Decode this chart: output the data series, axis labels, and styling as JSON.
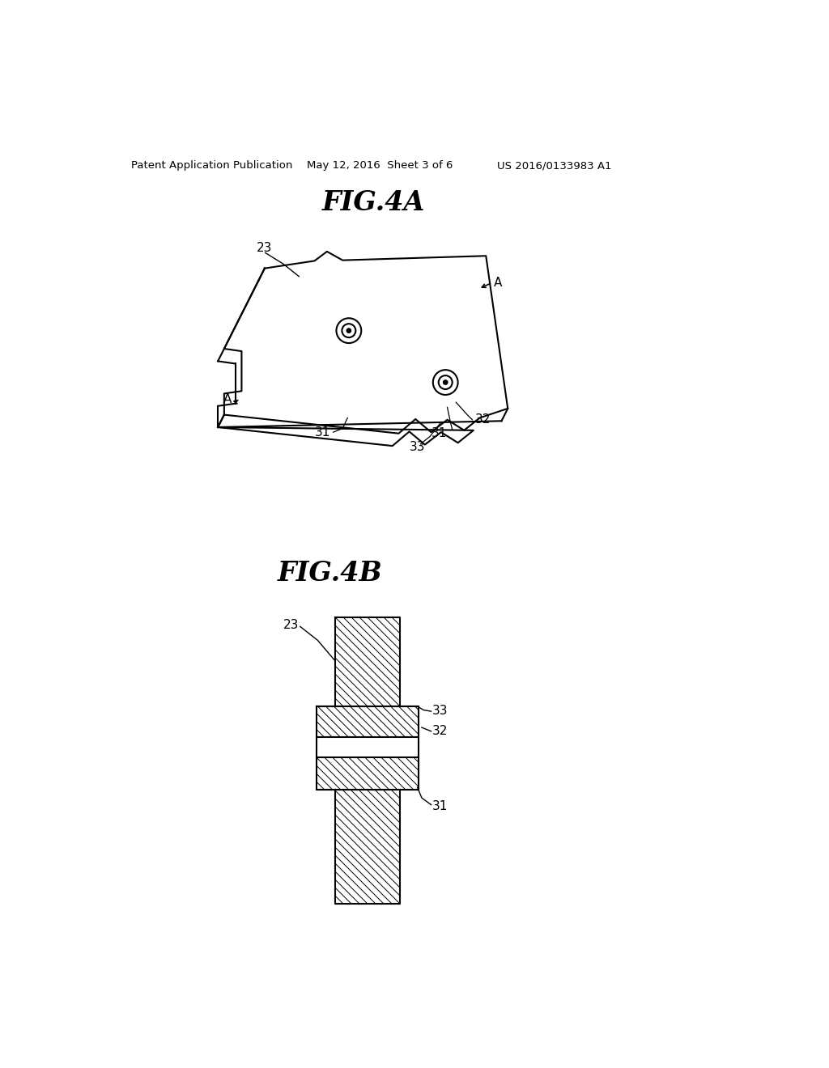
{
  "bg_color": "#ffffff",
  "line_color": "#000000",
  "header_left": "Patent Application Publication",
  "header_center": "May 12, 2016  Sheet 3 of 6",
  "header_right": "US 2016/0133983 A1",
  "fig4a_title": "FIG.4A",
  "fig4b_title": "FIG.4B",
  "label_23_4a": "23",
  "label_A_top": "A",
  "label_A_bot": "A",
  "label_31_left": "31",
  "label_31_right": "31",
  "label_32": "32",
  "label_33": "33",
  "label_23_4b": "23",
  "label_33_4b": "33",
  "label_32_4b": "32",
  "label_31_4b": "31"
}
